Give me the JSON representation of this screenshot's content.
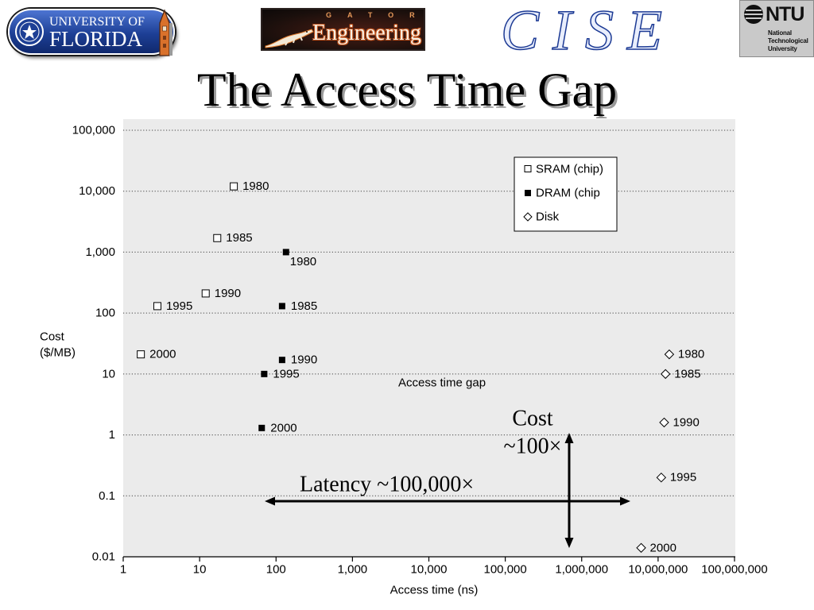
{
  "header": {
    "uf_logo": {
      "line1": "UNIVERSITY OF",
      "line2": "FLORIDA"
    },
    "gator_logo": {
      "top": "GATOR",
      "main": "Engineering"
    },
    "cise_logo": "CISE",
    "ntu_logo": {
      "abbr": "NTU",
      "lines": [
        "National",
        "Technological",
        "University"
      ]
    }
  },
  "slide": {
    "title": "The Access Time Gap"
  },
  "colors": {
    "plot_background": "#ebebeb",
    "title_shadow": "#9a9a9a",
    "uf_blue": "#1d3f95",
    "cise_blue": "#1c3a94",
    "gator_orange": "#c5541c"
  },
  "chart_data": {
    "type": "scatter",
    "xlabel": "Access time (ns)",
    "ylabel_lines": [
      "Cost",
      "($/MB)"
    ],
    "x_scale": "log",
    "y_scale": "log",
    "xlim": [
      1,
      100000000
    ],
    "ylim": [
      0.01,
      100000
    ],
    "x_ticks": [
      1,
      10,
      100,
      1000,
      10000,
      100000,
      1000000,
      10000000,
      100000000
    ],
    "x_tick_labels": [
      "1",
      "10",
      "100",
      "1,000",
      "10,000",
      "100,000",
      "1,000,000",
      "10,000,000",
      "100,000,000"
    ],
    "y_ticks": [
      0.01,
      0.1,
      1,
      10,
      100,
      1000,
      10000,
      100000
    ],
    "y_tick_labels": [
      "0.01",
      "0.1",
      "1",
      "10",
      "100",
      "1,000",
      "10,000",
      "100,000"
    ],
    "grid": true,
    "legend": "top-right",
    "series": [
      {
        "name": "SRAM (chip)",
        "marker": "open-square",
        "points": [
          {
            "label": "1980",
            "x": 28,
            "y": 12000,
            "label_position": "right"
          },
          {
            "label": "1985",
            "x": 17,
            "y": 1700,
            "label_position": "right"
          },
          {
            "label": "1990",
            "x": 12,
            "y": 210,
            "label_position": "right"
          },
          {
            "label": "1995",
            "x": 2.8,
            "y": 130,
            "label_position": "right"
          },
          {
            "label": "2000",
            "x": 1.7,
            "y": 21,
            "label_position": "right"
          }
        ]
      },
      {
        "name": "DRAM (chip",
        "marker": "filled-square",
        "points": [
          {
            "label": "1980",
            "x": 135,
            "y": 1000,
            "label_position": "below-right"
          },
          {
            "label": "1985",
            "x": 120,
            "y": 130,
            "label_position": "right"
          },
          {
            "label": "1990",
            "x": 120,
            "y": 17,
            "label_position": "right"
          },
          {
            "label": "1995",
            "x": 70,
            "y": 10,
            "label_position": "right"
          },
          {
            "label": "2000",
            "x": 65,
            "y": 1.3,
            "label_position": "right"
          }
        ]
      },
      {
        "name": "Disk",
        "marker": "open-diamond",
        "points": [
          {
            "label": "1980",
            "x": 14000000,
            "y": 21,
            "label_position": "right"
          },
          {
            "label": "1985",
            "x": 12500000,
            "y": 10,
            "label_position": "right"
          },
          {
            "label": "1990",
            "x": 12000000,
            "y": 1.6,
            "label_position": "right"
          },
          {
            "label": "1995",
            "x": 11000000,
            "y": 0.2,
            "label_position": "right"
          },
          {
            "label": "2000",
            "x": 6000000,
            "y": 0.014,
            "label_position": "right"
          }
        ]
      }
    ],
    "annotations": {
      "gap": "Access time gap",
      "latency": "Latency ~100,000×",
      "cost": [
        "Cost",
        "~100×"
      ]
    }
  }
}
